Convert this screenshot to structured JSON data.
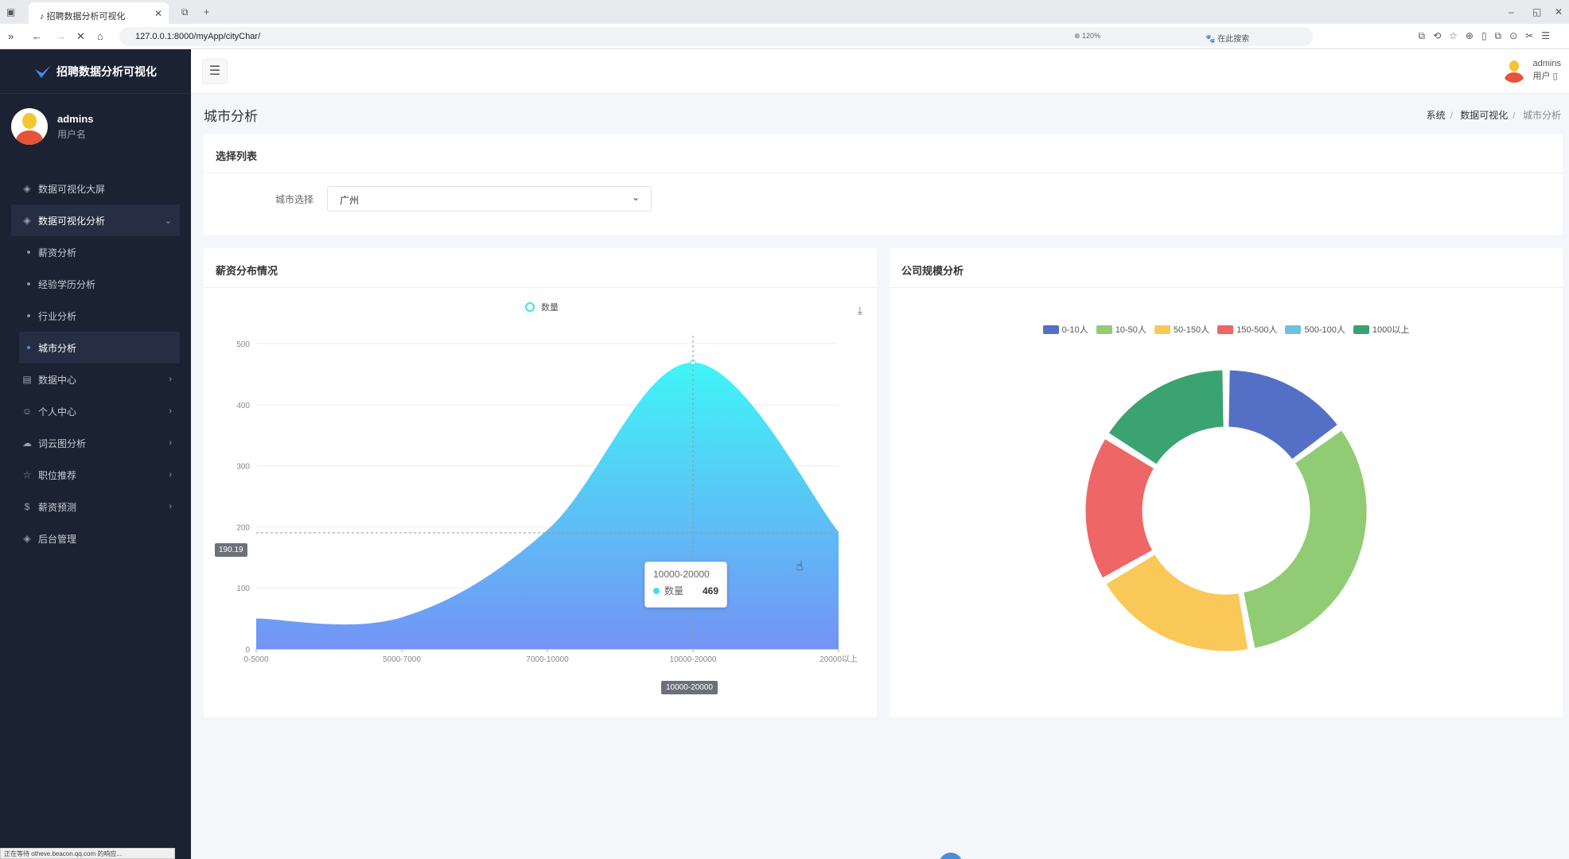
{
  "browser": {
    "tab_title": "招聘数据分析可视化",
    "url": "127.0.0.1:8000/myApp/cityChar/",
    "zoom": "120%",
    "search_placeholder": "在此搜索",
    "status_text": "正在等待 otheve.beacon.qq.com 的响应..."
  },
  "sidebar": {
    "logo_text": "招聘数据分析可视化",
    "user_name": "admins",
    "user_role": "用户名",
    "menu": [
      {
        "label": "数据可视化大屏",
        "icon": "layers-icon"
      },
      {
        "label": "数据可视化分析",
        "icon": "layers-icon",
        "open": true,
        "children": [
          "薪资分析",
          "经验学历分析",
          "行业分析",
          "城市分析"
        ],
        "active_child": "城市分析"
      },
      {
        "label": "数据中心",
        "icon": "database-icon"
      },
      {
        "label": "个人中心",
        "icon": "user-icon"
      },
      {
        "label": "词云图分析",
        "icon": "cloud-icon"
      },
      {
        "label": "职位推荐",
        "icon": "star-icon"
      },
      {
        "label": "薪资预测",
        "icon": "dollar-icon"
      },
      {
        "label": "后台管理",
        "icon": "layers-icon"
      }
    ]
  },
  "header": {
    "user_name": "admins",
    "user_role": "用户 ▯"
  },
  "page": {
    "title": "城市分析",
    "breadcrumb": [
      "系统",
      "数据可视化",
      "城市分析"
    ]
  },
  "filter": {
    "card_title": "选择列表",
    "label": "城市选择",
    "selected": "广州"
  },
  "salary_chart": {
    "card_title": "薪资分布情况",
    "legend": "数量",
    "y_ticks": [
      "0",
      "100",
      "200",
      "300",
      "400",
      "500"
    ],
    "axis_pointer_value": "190.19",
    "x_highlight": "10000-20000",
    "tooltip_title": "10000-20000",
    "tooltip_series": "数量",
    "tooltip_value": "469",
    "gradient_top": "#40f5f7",
    "gradient_bottom": "#7493f5"
  },
  "company_chart": {
    "card_title": "公司规模分析"
  },
  "chart_data": [
    {
      "type": "area",
      "categories": [
        "0-5000",
        "5000-7000",
        "7000-10000",
        "10000-20000",
        "20000以上"
      ],
      "series": [
        {
          "name": "数量",
          "values": [
            50,
            52,
            195,
            469,
            192
          ]
        }
      ],
      "ylim": [
        0,
        500
      ],
      "smooth": true,
      "legend_position": "top-center",
      "grid": true
    },
    {
      "type": "pie",
      "donut": true,
      "legend_position": "top-center",
      "labels": [
        "0-10人",
        "10-50人",
        "50-150人",
        "150-500人",
        "500-100人",
        "1000以上"
      ],
      "values": [
        13,
        28,
        17,
        15,
        0,
        14
      ],
      "colors": [
        "#5470c6",
        "#91cc75",
        "#fac858",
        "#ee6666",
        "#73c0de",
        "#3ba272"
      ]
    }
  ]
}
